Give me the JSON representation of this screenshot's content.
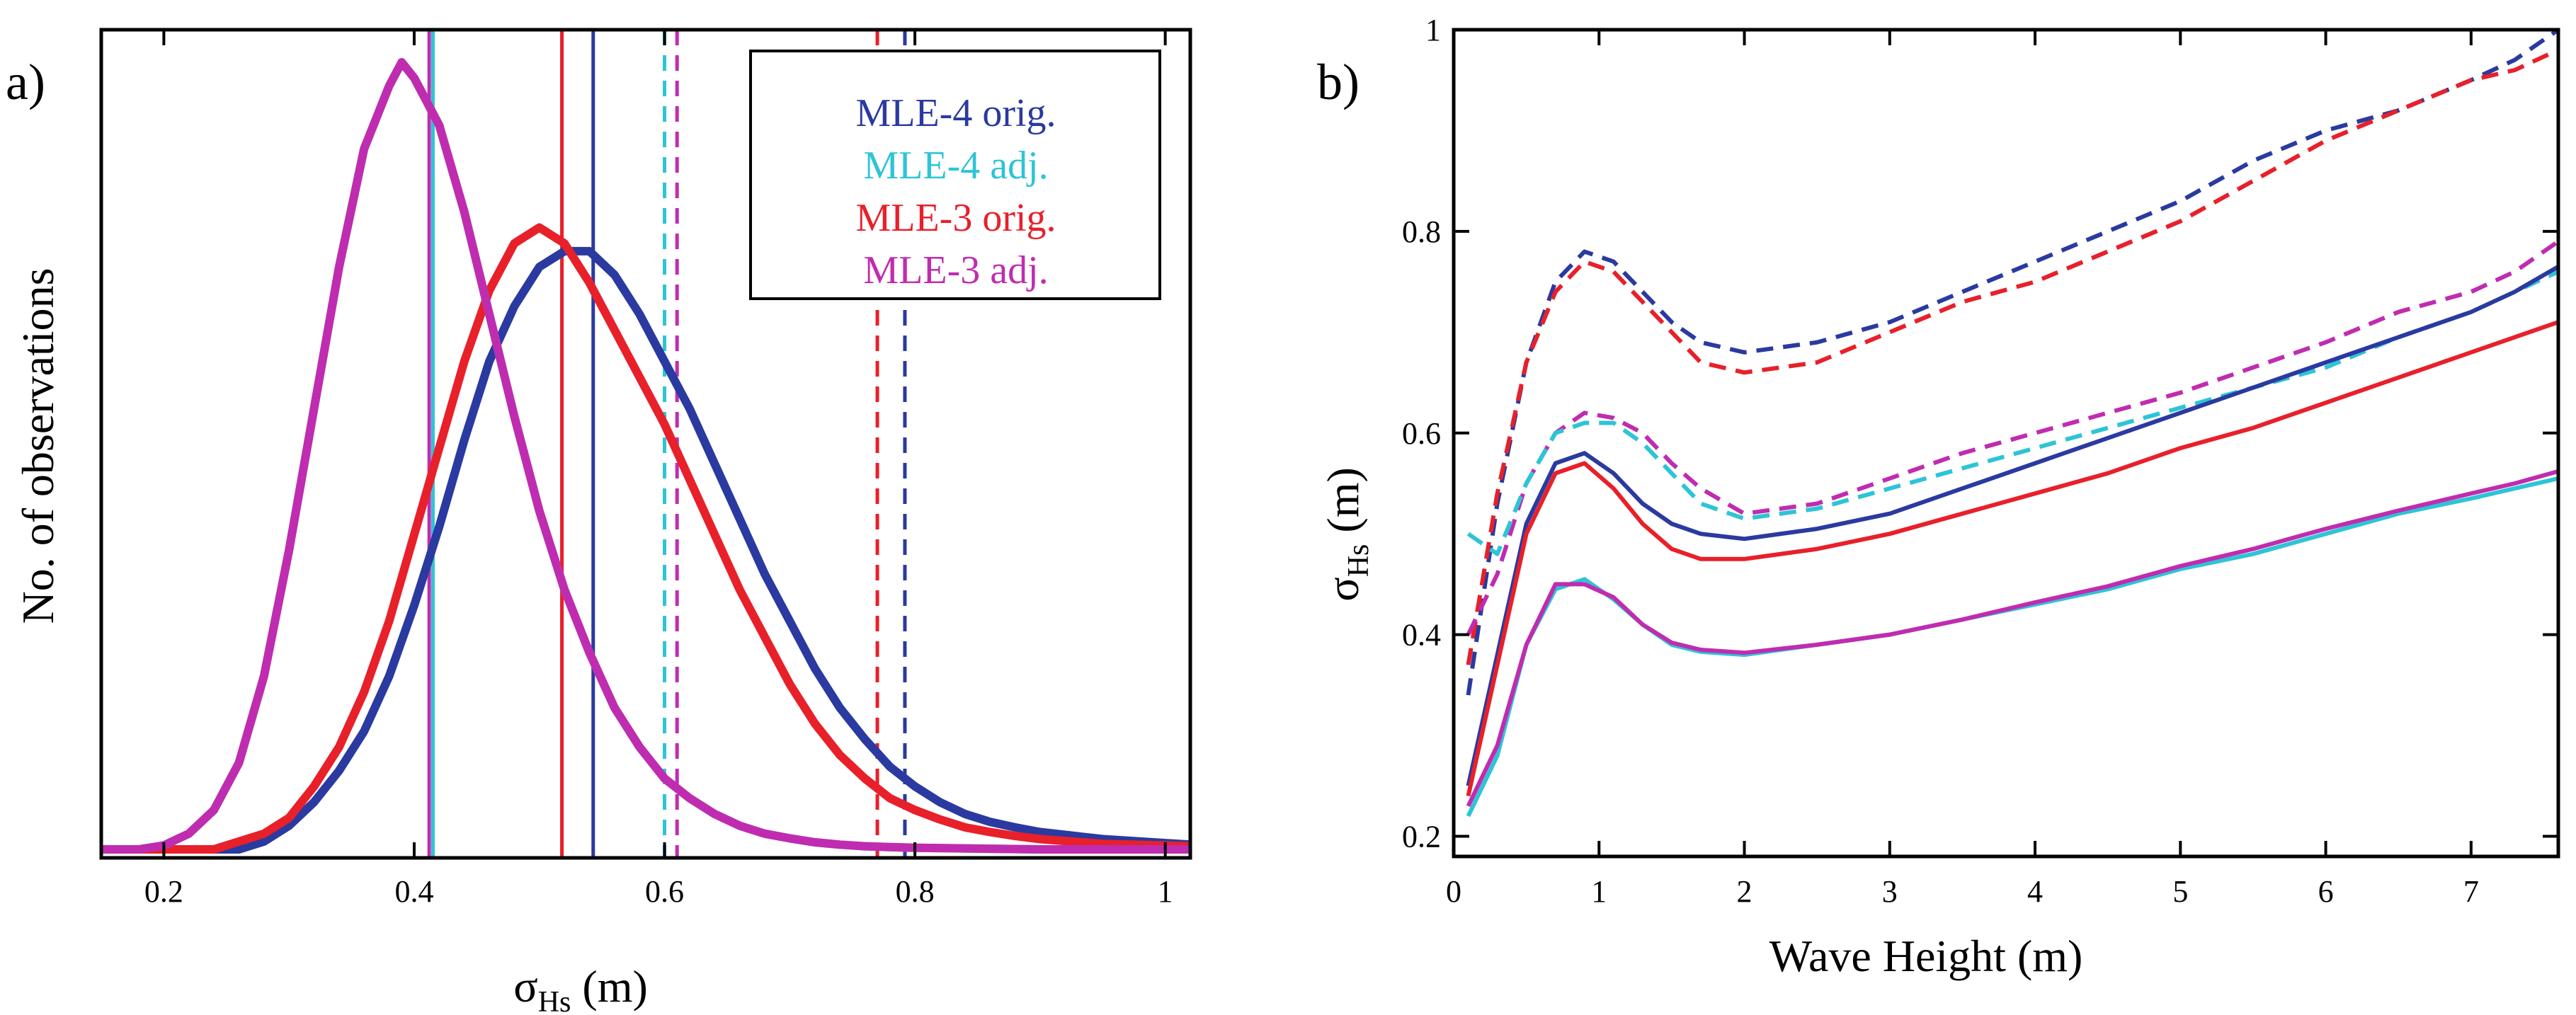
{
  "colors": {
    "mle4_orig": "#2a3aa0",
    "mle4_adj": "#2ec4d6",
    "mle3_orig": "#e8202a",
    "mle3_adj": "#c02cb0"
  },
  "chart_data": [
    {
      "type": "line",
      "panel_label": "a)",
      "title": "",
      "xlabel": {
        "main": "σ",
        "sub": "Hs",
        "unit": " (m)"
      },
      "ylabel": "No. of observations",
      "xlim": [
        0.15,
        1.02
      ],
      "ylim": [
        0,
        1.0
      ],
      "xticks": [
        0.2,
        0.4,
        0.6,
        0.8,
        1
      ],
      "xtick_labels": [
        "0.2",
        "0.4",
        "0.6",
        "0.8",
        "1"
      ],
      "yticks_visible": false,
      "legend": {
        "placement": "top-right",
        "entries": [
          "MLE-4 orig.",
          "MLE-4 adj.",
          "MLE-3 orig.",
          "MLE-3 adj."
        ]
      },
      "series": [
        {
          "name": "MLE-4 orig.",
          "color_key": "mle4_orig",
          "x": [
            0.15,
            0.26,
            0.28,
            0.3,
            0.32,
            0.34,
            0.36,
            0.38,
            0.4,
            0.42,
            0.44,
            0.46,
            0.48,
            0.5,
            0.52,
            0.54,
            0.56,
            0.58,
            0.6,
            0.62,
            0.64,
            0.66,
            0.68,
            0.7,
            0.72,
            0.74,
            0.76,
            0.78,
            0.8,
            0.82,
            0.84,
            0.86,
            0.88,
            0.9,
            0.95,
            1.02
          ],
          "y": [
            0.0,
            0.0,
            0.01,
            0.03,
            0.06,
            0.1,
            0.15,
            0.22,
            0.31,
            0.41,
            0.52,
            0.62,
            0.69,
            0.74,
            0.76,
            0.76,
            0.73,
            0.68,
            0.62,
            0.56,
            0.49,
            0.42,
            0.35,
            0.29,
            0.23,
            0.18,
            0.14,
            0.105,
            0.08,
            0.06,
            0.045,
            0.035,
            0.028,
            0.022,
            0.013,
            0.006
          ]
        },
        {
          "name": "MLE-3 orig.",
          "color_key": "mle3_orig",
          "x": [
            0.15,
            0.24,
            0.26,
            0.28,
            0.3,
            0.32,
            0.34,
            0.36,
            0.38,
            0.4,
            0.42,
            0.44,
            0.46,
            0.48,
            0.5,
            0.52,
            0.54,
            0.56,
            0.58,
            0.6,
            0.62,
            0.64,
            0.66,
            0.68,
            0.7,
            0.72,
            0.74,
            0.76,
            0.78,
            0.8,
            0.82,
            0.84,
            0.86,
            0.88,
            0.9,
            0.95,
            1.02
          ],
          "y": [
            0.0,
            0.0,
            0.01,
            0.02,
            0.04,
            0.08,
            0.13,
            0.2,
            0.29,
            0.4,
            0.51,
            0.62,
            0.71,
            0.77,
            0.79,
            0.77,
            0.72,
            0.66,
            0.6,
            0.54,
            0.47,
            0.4,
            0.33,
            0.27,
            0.21,
            0.16,
            0.12,
            0.09,
            0.065,
            0.05,
            0.038,
            0.028,
            0.022,
            0.017,
            0.013,
            0.007,
            0.004
          ]
        },
        {
          "name": "MLE-4 adj.",
          "color_key": "mle4_adj",
          "x": [
            0.15,
            0.18,
            0.2,
            0.22,
            0.24,
            0.26,
            0.28,
            0.3,
            0.32,
            0.34,
            0.36,
            0.38,
            0.39,
            0.4,
            0.42,
            0.44,
            0.46,
            0.48,
            0.5,
            0.52,
            0.54,
            0.56,
            0.58,
            0.6,
            0.62,
            0.64,
            0.66,
            0.68,
            0.7,
            0.72,
            0.74,
            0.76,
            0.78,
            0.8,
            0.85,
            0.9,
            1.02
          ],
          "y": [
            0.0,
            0.0,
            0.005,
            0.02,
            0.05,
            0.11,
            0.22,
            0.38,
            0.56,
            0.74,
            0.89,
            0.97,
            1.0,
            0.98,
            0.92,
            0.81,
            0.68,
            0.55,
            0.43,
            0.33,
            0.25,
            0.18,
            0.13,
            0.09,
            0.065,
            0.045,
            0.03,
            0.02,
            0.014,
            0.009,
            0.006,
            0.004,
            0.003,
            0.002,
            0.001,
            0.0,
            0.0
          ]
        },
        {
          "name": "MLE-3 adj.",
          "color_key": "mle3_adj",
          "x": [
            0.15,
            0.18,
            0.2,
            0.22,
            0.24,
            0.26,
            0.28,
            0.3,
            0.32,
            0.34,
            0.36,
            0.38,
            0.39,
            0.4,
            0.42,
            0.44,
            0.46,
            0.48,
            0.5,
            0.52,
            0.54,
            0.56,
            0.58,
            0.6,
            0.62,
            0.64,
            0.66,
            0.68,
            0.7,
            0.72,
            0.74,
            0.76,
            0.78,
            0.8,
            0.85,
            0.9,
            1.02
          ],
          "y": [
            0.0,
            0.0,
            0.005,
            0.02,
            0.05,
            0.11,
            0.22,
            0.38,
            0.56,
            0.74,
            0.89,
            0.97,
            1.0,
            0.98,
            0.92,
            0.81,
            0.68,
            0.55,
            0.43,
            0.33,
            0.25,
            0.18,
            0.13,
            0.09,
            0.065,
            0.045,
            0.03,
            0.02,
            0.014,
            0.009,
            0.006,
            0.004,
            0.003,
            0.002,
            0.001,
            0.0,
            0.0
          ]
        }
      ],
      "vertical_lines": [
        {
          "name": "MLE-4 orig. median",
          "color_key": "mle4_orig",
          "x": 0.543,
          "style": "solid"
        },
        {
          "name": "MLE-3 orig. median",
          "color_key": "mle3_orig",
          "x": 0.518,
          "style": "solid"
        },
        {
          "name": "MLE-4 adj. median",
          "color_key": "mle4_adj",
          "x": 0.415,
          "style": "solid"
        },
        {
          "name": "MLE-3 adj. median",
          "color_key": "mle3_adj",
          "x": 0.412,
          "style": "solid"
        },
        {
          "name": "MLE-4 orig. upper",
          "color_key": "mle4_orig",
          "x": 0.792,
          "style": "dashed"
        },
        {
          "name": "MLE-3 orig. upper",
          "color_key": "mle3_orig",
          "x": 0.77,
          "style": "dashed"
        },
        {
          "name": "MLE-4 adj. upper",
          "color_key": "mle4_adj",
          "x": 0.6,
          "style": "dashed"
        },
        {
          "name": "MLE-3 adj. upper",
          "color_key": "mle3_adj",
          "x": 0.61,
          "style": "dashed"
        }
      ]
    },
    {
      "type": "line",
      "panel_label": "b)",
      "title": "",
      "xlabel": "Wave Height (m)",
      "ylabel": {
        "main": "σ",
        "sub": "Hs",
        "unit": " (m)"
      },
      "xlim": [
        0,
        7.6
      ],
      "ylim": [
        0.18,
        1.0
      ],
      "xticks": [
        0,
        1,
        2,
        3,
        4,
        5,
        6,
        7
      ],
      "xtick_labels": [
        "0",
        "1",
        "2",
        "3",
        "4",
        "5",
        "6",
        "7"
      ],
      "yticks": [
        0.2,
        0.4,
        0.6,
        0.8,
        1
      ],
      "ytick_labels": [
        "0.2",
        "0.4",
        "0.6",
        "0.8",
        "1"
      ],
      "x": [
        0.1,
        0.3,
        0.5,
        0.7,
        0.9,
        1.1,
        1.3,
        1.5,
        1.7,
        2.0,
        2.5,
        3.0,
        3.5,
        4.0,
        4.5,
        5.0,
        5.5,
        6.0,
        6.5,
        7.0,
        7.3,
        7.6
      ],
      "series": [
        {
          "name": "MLE-4 orig. dashed",
          "color_key": "mle4_orig",
          "style": "dashed",
          "y": [
            0.34,
            0.53,
            0.67,
            0.75,
            0.78,
            0.77,
            0.74,
            0.71,
            0.69,
            0.68,
            0.69,
            0.71,
            0.74,
            0.77,
            0.8,
            0.83,
            0.87,
            0.9,
            0.92,
            0.95,
            0.97,
            1.0
          ]
        },
        {
          "name": "MLE-3 orig. dashed",
          "color_key": "mle3_orig",
          "style": "dashed",
          "y": [
            0.37,
            0.54,
            0.67,
            0.74,
            0.77,
            0.76,
            0.73,
            0.7,
            0.67,
            0.66,
            0.67,
            0.7,
            0.73,
            0.75,
            0.78,
            0.81,
            0.85,
            0.89,
            0.92,
            0.95,
            0.96,
            0.98
          ]
        },
        {
          "name": "MLE-3 adj. dashed",
          "color_key": "mle3_adj",
          "style": "dashed",
          "y": [
            0.4,
            0.46,
            0.55,
            0.6,
            0.62,
            0.615,
            0.6,
            0.57,
            0.545,
            0.52,
            0.53,
            0.555,
            0.58,
            0.6,
            0.62,
            0.64,
            0.665,
            0.69,
            0.72,
            0.74,
            0.76,
            0.79
          ]
        },
        {
          "name": "MLE-4 adj. dashed",
          "color_key": "mle4_adj",
          "style": "dashed",
          "y": [
            0.5,
            0.48,
            0.55,
            0.6,
            0.61,
            0.61,
            0.59,
            0.56,
            0.53,
            0.515,
            0.525,
            0.545,
            0.565,
            0.585,
            0.605,
            0.625,
            0.645,
            0.665,
            0.695,
            0.72,
            0.74,
            0.76
          ]
        },
        {
          "name": "MLE-4 orig. solid",
          "color_key": "mle4_orig",
          "style": "solid",
          "y": [
            0.25,
            0.38,
            0.51,
            0.57,
            0.58,
            0.56,
            0.53,
            0.51,
            0.5,
            0.495,
            0.505,
            0.52,
            0.545,
            0.57,
            0.595,
            0.62,
            0.645,
            0.67,
            0.695,
            0.72,
            0.74,
            0.765
          ]
        },
        {
          "name": "MLE-3 orig. solid",
          "color_key": "mle3_orig",
          "style": "solid",
          "y": [
            0.24,
            0.37,
            0.5,
            0.56,
            0.57,
            0.545,
            0.51,
            0.485,
            0.475,
            0.475,
            0.485,
            0.5,
            0.52,
            0.54,
            0.56,
            0.585,
            0.605,
            0.63,
            0.655,
            0.68,
            0.695,
            0.71
          ]
        },
        {
          "name": "MLE-4 adj. solid",
          "color_key": "mle4_adj",
          "style": "solid",
          "y": [
            0.22,
            0.28,
            0.39,
            0.445,
            0.455,
            0.435,
            0.41,
            0.39,
            0.383,
            0.38,
            0.39,
            0.4,
            0.415,
            0.43,
            0.445,
            0.465,
            0.48,
            0.5,
            0.52,
            0.535,
            0.545,
            0.555
          ]
        },
        {
          "name": "MLE-3 adj. solid",
          "color_key": "mle3_adj",
          "style": "solid",
          "y": [
            0.23,
            0.29,
            0.39,
            0.45,
            0.45,
            0.437,
            0.41,
            0.392,
            0.385,
            0.382,
            0.39,
            0.4,
            0.415,
            0.432,
            0.448,
            0.468,
            0.485,
            0.505,
            0.523,
            0.54,
            0.55,
            0.562
          ]
        }
      ]
    }
  ]
}
